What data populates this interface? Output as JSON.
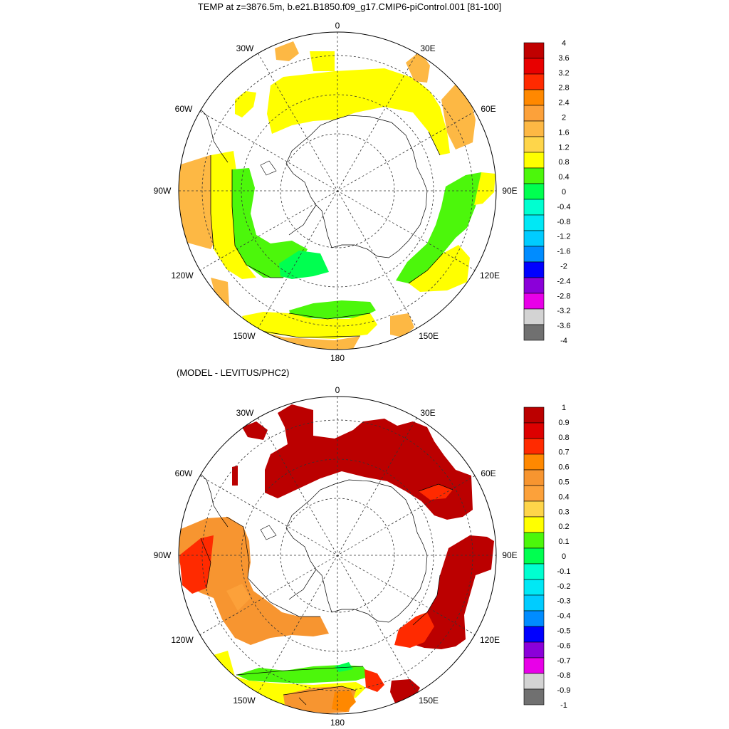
{
  "figure_title": "TEMP at z=3876.5m, b.e21.B1850.f09_g17.CMIP6-piControl.001 [81-100]",
  "diff_title": "(MODEL - LEVITUS/PHC2)",
  "lon_labels": {
    "top": "0",
    "upper_left": "30W",
    "upper_right": "30E",
    "left_upper": "60W",
    "right_upper": "60E",
    "left": "90W",
    "right": "90E",
    "left_lower": "120W",
    "right_lower": "120E",
    "lower_left": "150W",
    "lower_right": "150E",
    "bottom": "180"
  },
  "colorbar_top": {
    "labels": [
      "4",
      "3.6",
      "3.2",
      "2.8",
      "2.4",
      "2",
      "1.6",
      "1.2",
      "0.8",
      "0.4",
      "0",
      "-0.4",
      "-0.8",
      "-1.2",
      "-1.6",
      "-2",
      "-2.4",
      "-2.8",
      "-3.2",
      "-3.6",
      "-4"
    ],
    "colors": [
      "#c00000",
      "#e80000",
      "#ff2a00",
      "#ff8800",
      "#fca13a",
      "#fdb844",
      "#fed54a",
      "#ffff00",
      "#4cf70b",
      "#00ff50",
      "#00ffd0",
      "#00e8f5",
      "#00ccff",
      "#008cff",
      "#0000ff",
      "#8b00d9",
      "#e800e8",
      "#d3d3d3",
      "#707070"
    ]
  },
  "colorbar_bottom": {
    "labels": [
      "1",
      "0.9",
      "0.8",
      "0.7",
      "0.6",
      "0.5",
      "0.4",
      "0.3",
      "0.2",
      "0.1",
      "0",
      "-0.1",
      "-0.2",
      "-0.3",
      "-0.4",
      "-0.5",
      "-0.6",
      "-0.7",
      "-0.8",
      "-0.9",
      "-1"
    ],
    "colors": [
      "#bb0000",
      "#dd0000",
      "#ff2a00",
      "#ff8800",
      "#f79530",
      "#fca13a",
      "#fed54a",
      "#ffff00",
      "#4cf70b",
      "#00ff50",
      "#00ffd0",
      "#00e8f5",
      "#00ccff",
      "#008cff",
      "#0000ff",
      "#8b00d9",
      "#e800e8",
      "#d3d3d3",
      "#707070"
    ]
  }
}
